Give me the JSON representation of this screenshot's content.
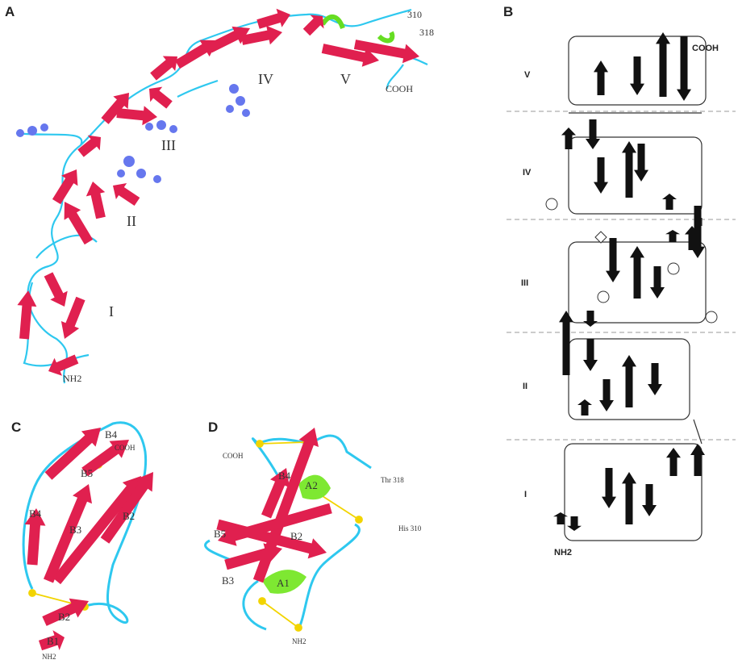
{
  "panel_a": {
    "label": "A",
    "labels": [
      "310",
      "318",
      "IV",
      "V",
      "COOH",
      "III",
      "II",
      "I",
      "NH2"
    ]
  },
  "panel_b": {
    "label": "B",
    "domains": [
      "V",
      "IV",
      "III",
      "II",
      "I"
    ],
    "terminals": [
      "COOH",
      "NH2"
    ]
  },
  "panel_c": {
    "label": "C",
    "labels": [
      "B4",
      "COOH",
      "B5",
      "B2",
      "B4",
      "B3",
      "B2",
      "B1",
      "NH2"
    ]
  },
  "panel_d": {
    "label": "D",
    "labels": [
      "COOH",
      "B4",
      "A2",
      "Thr 318",
      "His 310",
      "B5",
      "B2",
      "B3",
      "A1",
      "NH2"
    ]
  }
}
